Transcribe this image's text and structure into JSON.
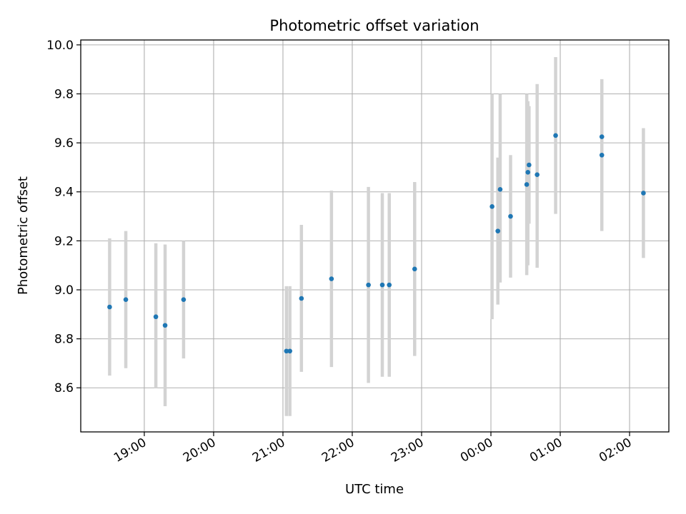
{
  "chart_data": {
    "type": "scatter",
    "title": "Photometric offset variation",
    "xlabel": "UTC time",
    "ylabel": "Photometric offset",
    "x_axis_kind": "time (HH:MM, crossing midnight)",
    "xlim": [
      "18:05",
      "02:34"
    ],
    "ylim": [
      8.42,
      10.02
    ],
    "grid": true,
    "x_ticks": [
      "19:00",
      "20:00",
      "21:00",
      "22:00",
      "23:00",
      "00:00",
      "01:00",
      "02:00"
    ],
    "y_ticks": [
      "8.6",
      "8.8",
      "9.0",
      "9.2",
      "9.4",
      "9.6",
      "9.8",
      "10.0"
    ],
    "point_color": "#1f77b4",
    "errorbar_color": "#d3d3d3",
    "points": [
      {
        "time": "18:30",
        "y": 8.93,
        "err_low": 8.65,
        "err_high": 9.21
      },
      {
        "time": "18:44",
        "y": 8.96,
        "err_low": 8.68,
        "err_high": 9.24
      },
      {
        "time": "19:10",
        "y": 8.89,
        "err_low": 8.6,
        "err_high": 9.19
      },
      {
        "time": "19:18",
        "y": 8.855,
        "err_low": 8.525,
        "err_high": 9.185
      },
      {
        "time": "19:34",
        "y": 8.96,
        "err_low": 8.72,
        "err_high": 9.2
      },
      {
        "time": "21:03",
        "y": 8.75,
        "err_low": 8.485,
        "err_high": 9.015
      },
      {
        "time": "21:06",
        "y": 8.75,
        "err_low": 8.485,
        "err_high": 9.015
      },
      {
        "time": "21:16",
        "y": 8.965,
        "err_low": 8.665,
        "err_high": 9.265
      },
      {
        "time": "21:42",
        "y": 9.045,
        "err_low": 8.685,
        "err_high": 9.405
      },
      {
        "time": "22:14",
        "y": 9.02,
        "err_low": 8.62,
        "err_high": 9.42
      },
      {
        "time": "22:26",
        "y": 9.02,
        "err_low": 8.645,
        "err_high": 9.395
      },
      {
        "time": "22:32",
        "y": 9.02,
        "err_low": 8.645,
        "err_high": 9.395
      },
      {
        "time": "22:54",
        "y": 9.085,
        "err_low": 8.73,
        "err_high": 9.44
      },
      {
        "time": "00:01",
        "y": 9.34,
        "err_low": 8.88,
        "err_high": 9.8
      },
      {
        "time": "00:06",
        "y": 9.24,
        "err_low": 8.94,
        "err_high": 9.54
      },
      {
        "time": "00:08",
        "y": 9.41,
        "err_low": 9.03,
        "err_high": 9.8
      },
      {
        "time": "00:17",
        "y": 9.3,
        "err_low": 9.05,
        "err_high": 9.55
      },
      {
        "time": "00:31",
        "y": 9.43,
        "err_low": 9.06,
        "err_high": 9.8
      },
      {
        "time": "00:32",
        "y": 9.48,
        "err_low": 9.1,
        "err_high": 9.77
      },
      {
        "time": "00:33",
        "y": 9.51,
        "err_low": 9.27,
        "err_high": 9.75
      },
      {
        "time": "00:40",
        "y": 9.47,
        "err_low": 9.09,
        "err_high": 9.84
      },
      {
        "time": "00:56",
        "y": 9.63,
        "err_low": 9.31,
        "err_high": 9.95
      },
      {
        "time": "01:36",
        "y": 9.55,
        "err_low": 9.24,
        "err_high": 9.86
      },
      {
        "time": "01:36",
        "y": 9.625,
        "err_low": 9.4,
        "err_high": 9.85
      },
      {
        "time": "02:12",
        "y": 9.395,
        "err_low": 9.13,
        "err_high": 9.66
      }
    ]
  }
}
